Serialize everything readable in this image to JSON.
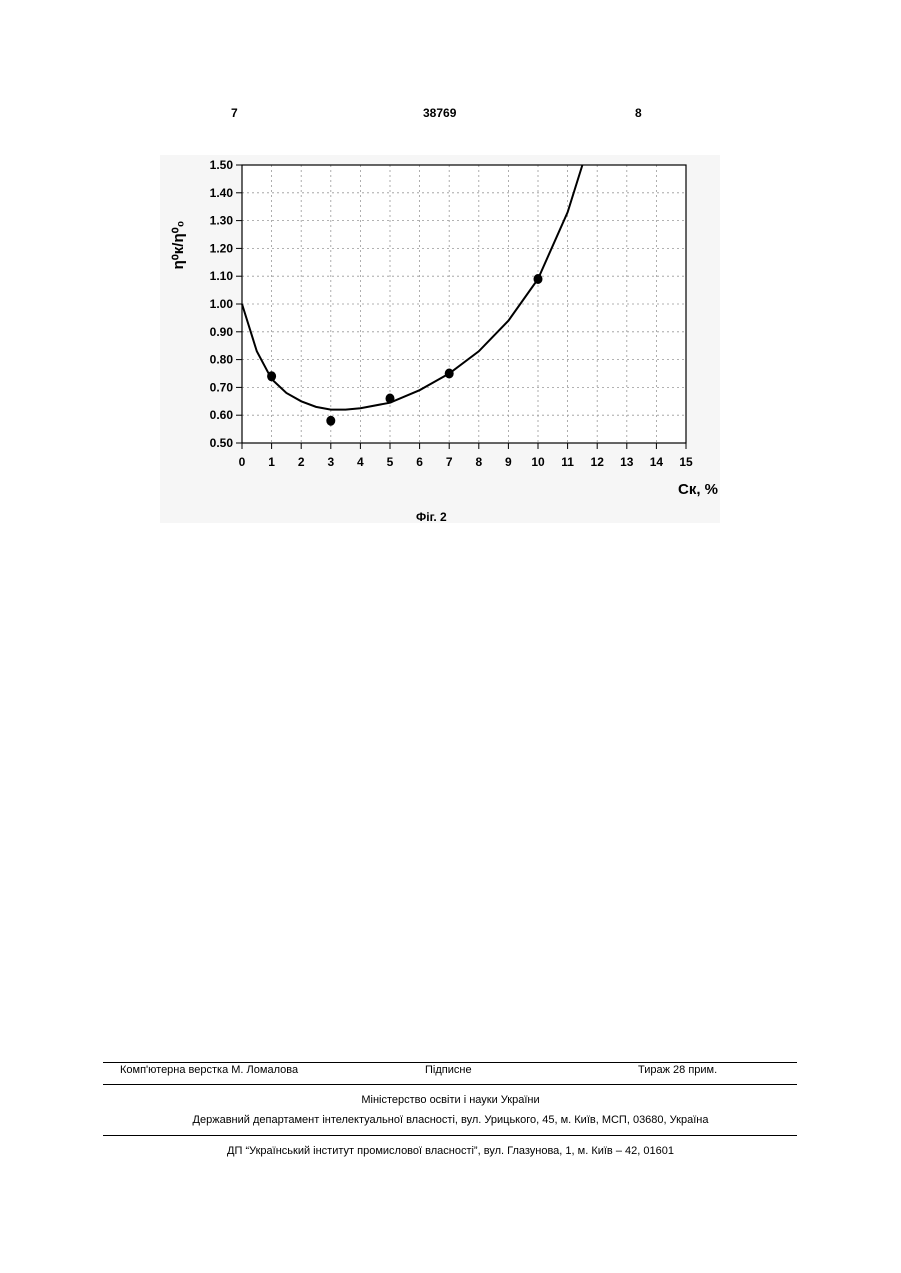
{
  "header": {
    "left_page": "7",
    "patent_number": "38769",
    "right_page": "8"
  },
  "chart_data": {
    "type": "scatter",
    "xlabel": "Ск, %",
    "ylabel": "η⁰к/η⁰₀",
    "xlim": [
      0,
      15
    ],
    "ylim": [
      0.5,
      1.5
    ],
    "xticks": [
      0,
      1,
      2,
      3,
      4,
      5,
      6,
      7,
      8,
      9,
      10,
      11,
      12,
      13,
      14,
      15
    ],
    "yticks": [
      {
        "value": 0.5,
        "label": "0.50"
      },
      {
        "value": 0.6,
        "label": "0.60"
      },
      {
        "value": 0.7,
        "label": "0.70"
      },
      {
        "value": 0.8,
        "label": "0.80"
      },
      {
        "value": 0.9,
        "label": "0.90"
      },
      {
        "value": 1.0,
        "label": "1.00"
      },
      {
        "value": 1.1,
        "label": "1.10"
      },
      {
        "value": 1.2,
        "label": "1.20"
      },
      {
        "value": 1.3,
        "label": "1.30"
      },
      {
        "value": 1.4,
        "label": "1.40"
      },
      {
        "value": 1.5,
        "label": "1.50"
      }
    ],
    "grid": true,
    "series": [
      {
        "type": "scatter",
        "color": "#000000",
        "x": [
          1,
          3,
          5,
          7,
          10
        ],
        "values": [
          0.74,
          0.58,
          0.66,
          0.75,
          1.09
        ]
      },
      {
        "type": "line",
        "color": "#000000",
        "x": [
          0,
          0.5,
          1,
          1.5,
          2,
          2.5,
          3,
          3.5,
          4,
          5,
          6,
          7,
          8,
          9,
          10,
          11,
          11.5
        ],
        "values": [
          1.0,
          0.83,
          0.73,
          0.68,
          0.65,
          0.63,
          0.62,
          0.62,
          0.625,
          0.645,
          0.69,
          0.75,
          0.83,
          0.94,
          1.09,
          1.33,
          1.5
        ]
      }
    ]
  },
  "caption": "Фіг. 2",
  "footer": {
    "typesetting": "Комп'ютерна верстка М. Ломалова",
    "signed": "Підписне",
    "circulation": "Тираж 28 прим.",
    "ministry": "Міністерство освіти і науки України",
    "department": "Державний департамент інтелектуальної власності, вул. Урицького, 45, м. Київ, МСП, 03680, Україна",
    "institute": "ДП “Український інститут промислової власності”, вул. Глазунова, 1, м. Київ – 42, 01601"
  }
}
